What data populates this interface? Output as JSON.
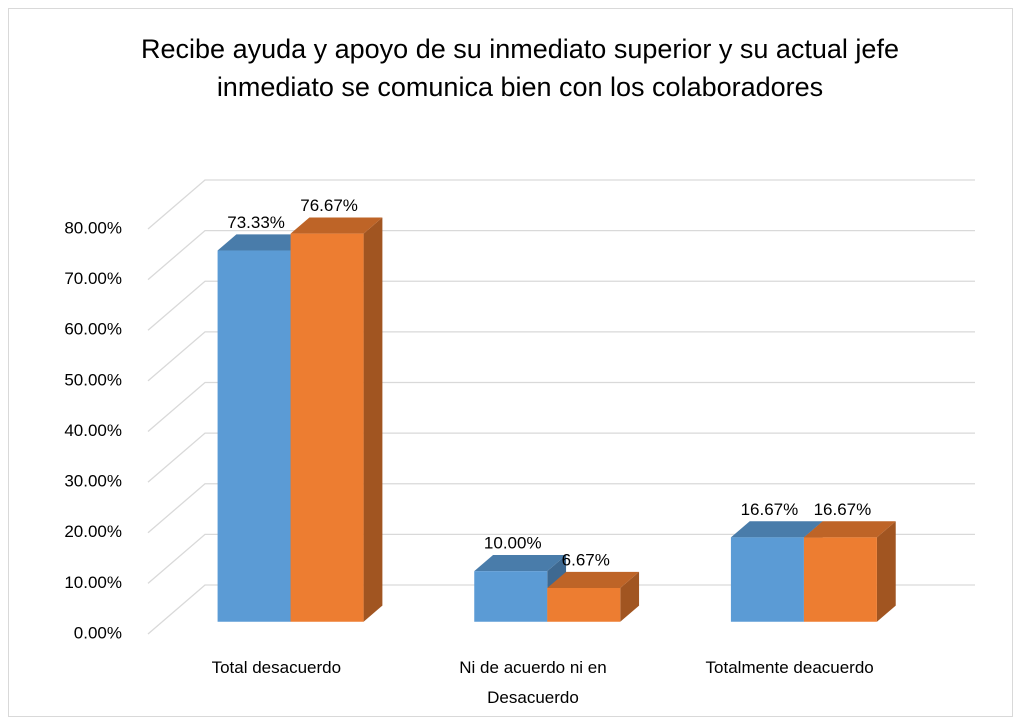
{
  "chart_data": {
    "type": "bar3d",
    "title": "Recibe ayuda y apoyo de su inmediato superior y su actual jefe inmediato se comunica bien con los colaboradores",
    "categories": [
      "Total desacuerdo",
      "Ni de acuerdo ni en Desacuerdo",
      "Totalmente deacuerdo"
    ],
    "series": [
      {
        "color": "#5b9bd5",
        "values": [
          73.33,
          10.0,
          16.67
        ],
        "value_labels": [
          "73.33%",
          "10.00%",
          "16.67%"
        ]
      },
      {
        "color": "#ed7d31",
        "values": [
          76.67,
          6.67,
          16.67
        ],
        "value_labels": [
          "76.67%",
          "6.67%",
          "16.67%"
        ]
      }
    ],
    "ylim": [
      0,
      80
    ],
    "yticks": [
      {
        "value": 0,
        "label": "0.00%"
      },
      {
        "value": 10,
        "label": "10.00%"
      },
      {
        "value": 20,
        "label": "20.00%"
      },
      {
        "value": 30,
        "label": "30.00%"
      },
      {
        "value": 40,
        "label": "40.00%"
      },
      {
        "value": 50,
        "label": "50.00%"
      },
      {
        "value": 60,
        "label": "60.00%"
      },
      {
        "value": 70,
        "label": "70.00%"
      },
      {
        "value": 80,
        "label": "80.00%"
      }
    ],
    "grid": true
  }
}
